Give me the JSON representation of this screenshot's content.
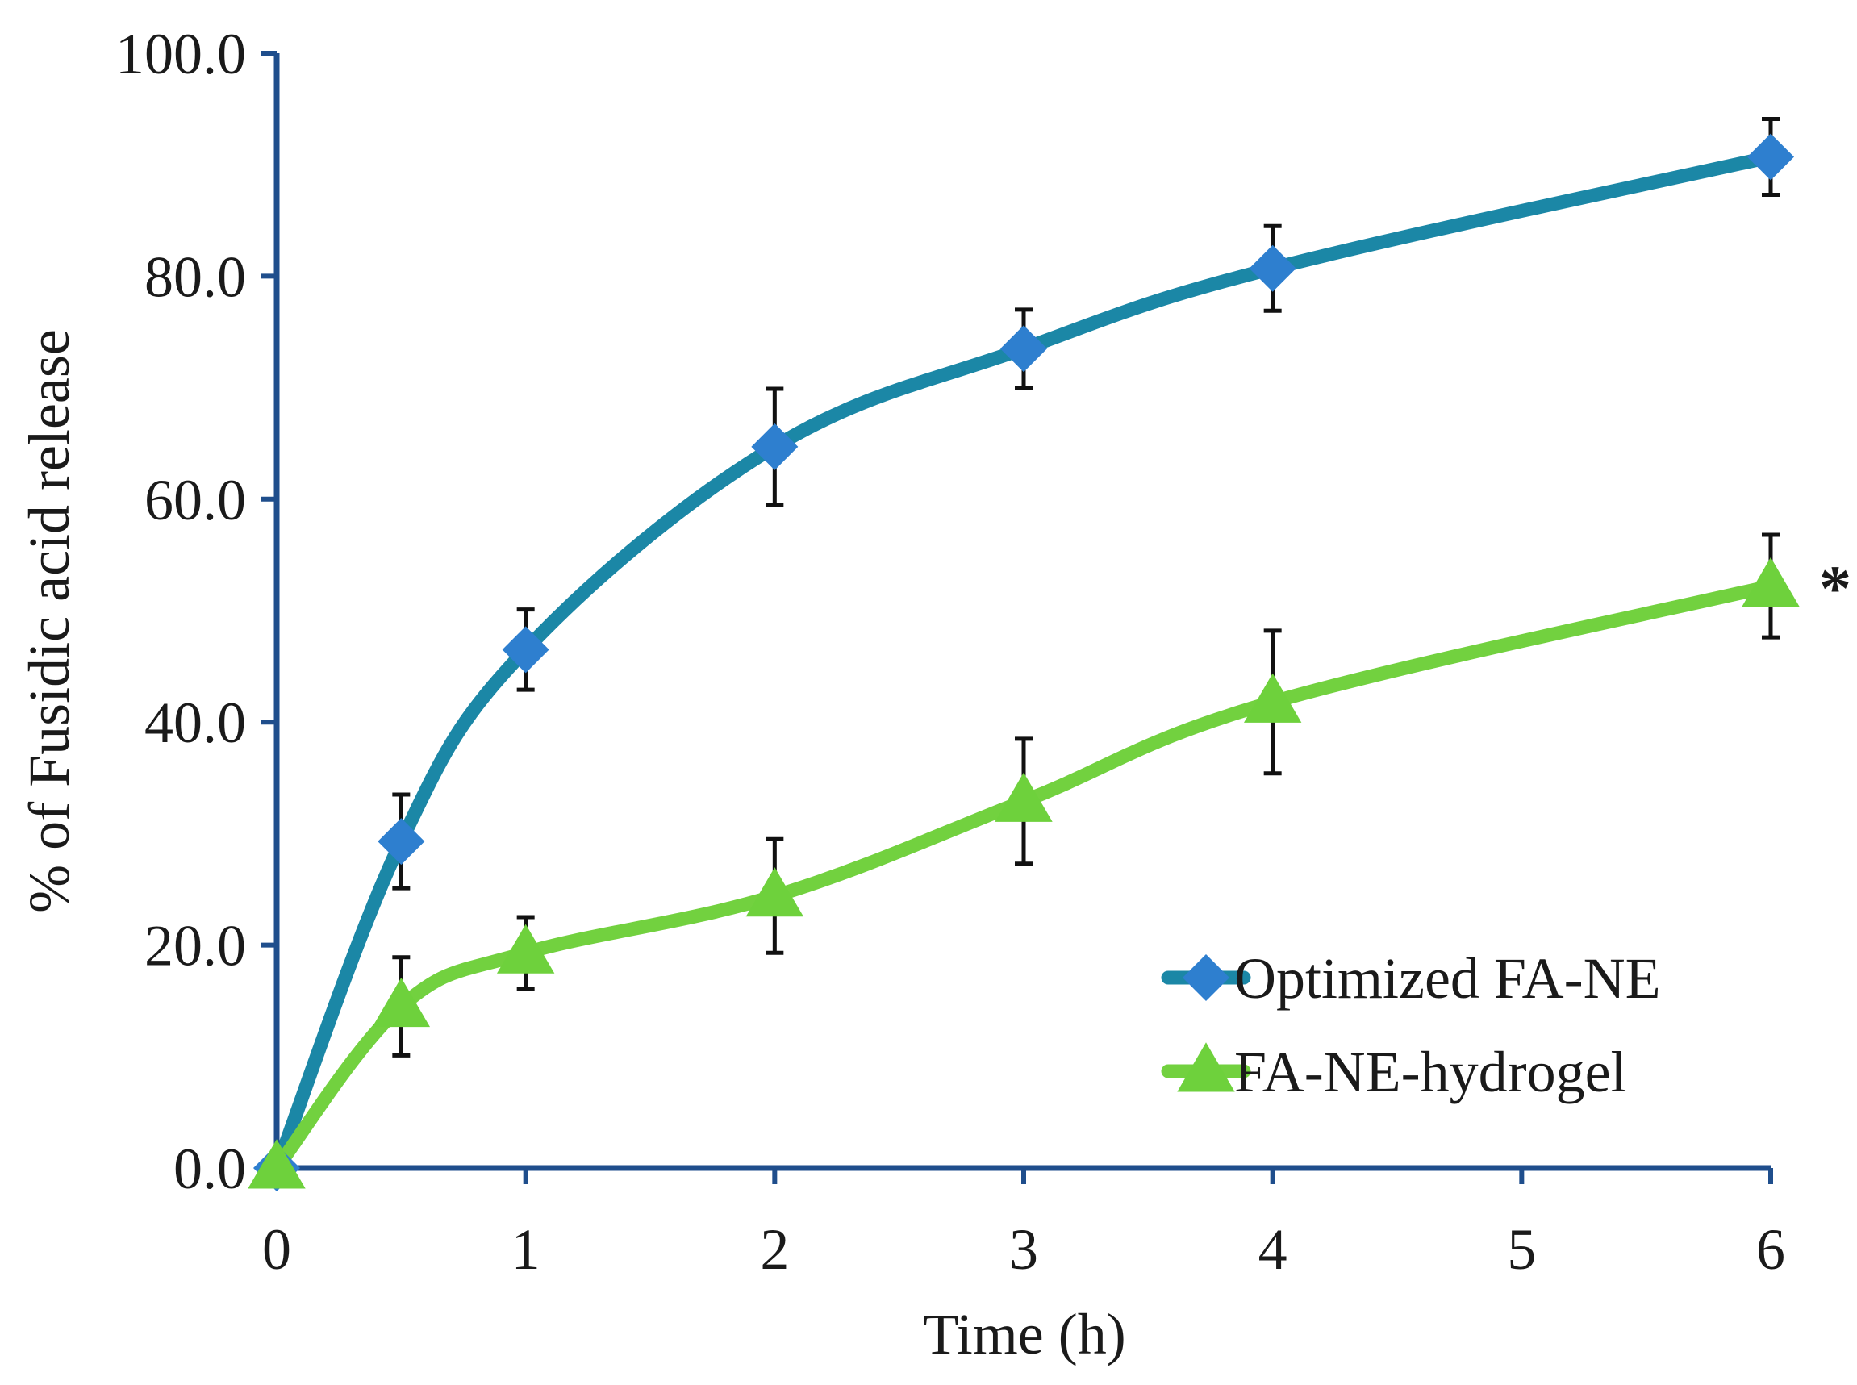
{
  "chart_data": {
    "type": "line",
    "title": "",
    "xlabel": "Time (h)",
    "ylabel": "% of Fusidic acid release",
    "xlim": [
      0,
      6
    ],
    "ylim": [
      0,
      100
    ],
    "x_ticks": [
      0,
      1,
      2,
      3,
      4,
      5,
      6
    ],
    "x_tick_labels": [
      "0",
      "1",
      "2",
      "3",
      "4",
      "5",
      "6"
    ],
    "y_ticks": [
      0,
      20,
      40,
      60,
      80,
      100
    ],
    "y_tick_labels": [
      "0.0",
      "20.0",
      "40.0",
      "60.0",
      "80.0",
      "100.0"
    ],
    "grid": false,
    "legend_position": "bottom-right",
    "series": [
      {
        "name": "Optimized FA-NE",
        "marker": "diamond",
        "color": "#1b87a6",
        "marker_color": "#2e7fcf",
        "x": [
          0,
          0.5,
          1,
          2,
          3,
          4,
          6
        ],
        "values": [
          0,
          29.3,
          46.5,
          64.7,
          73.5,
          80.7,
          90.7
        ],
        "errors": [
          0,
          4.2,
          3.6,
          5.2,
          3.5,
          3.8,
          3.4
        ]
      },
      {
        "name": "FA-NE-hydrogel",
        "marker": "triangle",
        "color": "#72d13f",
        "marker_color": "#6ed13c",
        "x": [
          0,
          0.5,
          1,
          2,
          3,
          4,
          6
        ],
        "values": [
          0,
          14.5,
          19.3,
          24.4,
          32.9,
          41.8,
          52.2
        ],
        "errors": [
          0,
          4.4,
          3.2,
          5.1,
          5.6,
          6.4,
          4.6
        ]
      }
    ],
    "annotations": [
      {
        "text": "*",
        "series": "FA-NE-hydrogel",
        "x": 6
      }
    ]
  }
}
